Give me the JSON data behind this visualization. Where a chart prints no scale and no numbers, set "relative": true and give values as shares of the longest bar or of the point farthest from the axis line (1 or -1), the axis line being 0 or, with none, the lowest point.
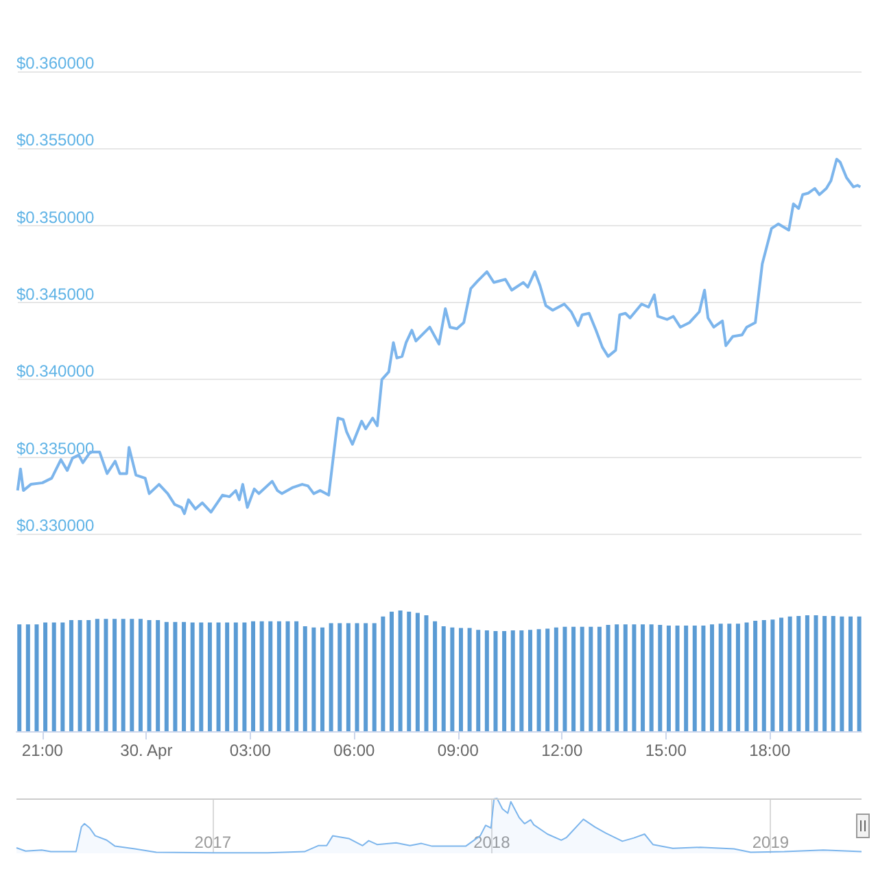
{
  "chart_data": [
    {
      "type": "line",
      "color": "#7cb5ec",
      "marker": "none",
      "grid": "y",
      "tick_labels": "y",
      "xlim": [
        "2019-04-29T20:15",
        "2019-04-30T20:39"
      ],
      "ylim": [
        0.33,
        0.36
      ],
      "yticks": [
        {
          "value": 0.33,
          "label": "$0.330000"
        },
        {
          "value": 0.335,
          "label": "$0.335000"
        },
        {
          "value": 0.34,
          "label": "$0.340000"
        },
        {
          "value": 0.345,
          "label": "$0.345000"
        },
        {
          "value": 0.35,
          "label": "$0.350000"
        },
        {
          "value": 0.355,
          "label": "$0.355000"
        },
        {
          "value": 0.36,
          "label": "$0.360000"
        }
      ],
      "x": [
        "2019-04-29T20:17",
        "2019-04-29T20:22",
        "2019-04-29T20:27",
        "2019-04-29T20:40",
        "2019-04-29T21:00",
        "2019-04-29T21:16",
        "2019-04-29T21:32",
        "2019-04-29T21:43",
        "2019-04-29T21:52",
        "2019-04-29T22:03",
        "2019-04-29T22:10",
        "2019-04-29T22:23",
        "2019-04-29T22:39",
        "2019-04-29T22:52",
        "2019-04-29T23:06",
        "2019-04-29T23:14",
        "2019-04-29T23:26",
        "2019-04-29T23:30",
        "2019-04-29T23:42",
        "2019-04-29T23:58",
        "2019-04-30T00:05",
        "2019-04-30T00:22",
        "2019-04-30T00:37",
        "2019-04-30T00:49",
        "2019-04-30T01:01",
        "2019-04-30T01:06",
        "2019-04-30T01:13",
        "2019-04-30T01:25",
        "2019-04-30T01:37",
        "2019-04-30T01:52",
        "2019-04-30T02:12",
        "2019-04-30T02:24",
        "2019-04-30T02:35",
        "2019-04-30T02:41",
        "2019-04-30T02:47",
        "2019-04-30T02:55",
        "2019-04-30T03:07",
        "2019-04-30T03:15",
        "2019-04-30T03:38",
        "2019-04-30T03:47",
        "2019-04-30T03:55",
        "2019-04-30T04:14",
        "2019-04-30T04:30",
        "2019-04-30T04:40",
        "2019-04-30T04:50",
        "2019-04-30T05:01",
        "2019-04-30T05:16",
        "2019-04-30T05:32",
        "2019-04-30T05:41",
        "2019-04-30T05:47",
        "2019-04-30T05:57",
        "2019-04-30T06:13",
        "2019-04-30T06:20",
        "2019-04-30T06:32",
        "2019-04-30T06:40",
        "2019-04-30T06:48",
        "2019-04-30T07:00",
        "2019-04-30T07:08",
        "2019-04-30T07:14",
        "2019-04-30T07:23",
        "2019-04-30T07:30",
        "2019-04-30T07:40",
        "2019-04-30T07:47",
        "2019-04-30T08:11",
        "2019-04-30T08:27",
        "2019-04-30T08:38",
        "2019-04-30T08:46",
        "2019-04-30T08:58",
        "2019-04-30T09:10",
        "2019-04-30T09:22",
        "2019-04-30T09:34",
        "2019-04-30T09:50",
        "2019-04-30T10:02",
        "2019-04-30T10:22",
        "2019-04-30T10:33",
        "2019-04-30T10:53",
        "2019-04-30T11:01",
        "2019-04-30T11:13",
        "2019-04-30T11:22",
        "2019-04-30T11:32",
        "2019-04-30T11:44",
        "2019-04-30T12:04",
        "2019-04-30T12:16",
        "2019-04-30T12:28",
        "2019-04-30T12:35",
        "2019-04-30T12:47",
        "2019-04-30T12:59",
        "2019-04-30T13:10",
        "2019-04-30T13:20",
        "2019-04-30T13:33",
        "2019-04-30T13:40",
        "2019-04-30T13:50",
        "2019-04-30T13:58",
        "2019-04-30T14:18",
        "2019-04-30T14:30",
        "2019-04-30T14:40",
        "2019-04-30T14:46",
        "2019-04-30T15:02",
        "2019-04-30T15:13",
        "2019-04-30T15:25",
        "2019-04-30T15:41",
        "2019-04-30T15:58",
        "2019-04-30T16:07",
        "2019-04-30T16:13",
        "2019-04-30T16:23",
        "2019-04-30T16:38",
        "2019-04-30T16:44",
        "2019-04-30T16:56",
        "2019-04-30T17:12",
        "2019-04-30T17:20",
        "2019-04-30T17:35",
        "2019-04-30T17:47",
        "2019-04-30T18:03",
        "2019-04-30T18:15",
        "2019-04-30T18:33",
        "2019-04-30T18:41",
        "2019-04-30T18:50",
        "2019-04-30T18:57",
        "2019-04-30T19:07",
        "2019-04-30T19:18",
        "2019-04-30T19:26",
        "2019-04-30T19:38",
        "2019-04-30T19:46",
        "2019-04-30T19:56",
        "2019-04-30T20:02",
        "2019-04-30T20:13",
        "2019-04-30T20:25",
        "2019-04-30T20:32",
        "2019-04-30T20:37"
      ],
      "values": [
        0.3328,
        0.3342,
        0.3328,
        0.3332,
        0.3333,
        0.3336,
        0.3348,
        0.3341,
        0.3349,
        0.3351,
        0.3346,
        0.3353,
        0.3353,
        0.3339,
        0.3347,
        0.3339,
        0.3339,
        0.3356,
        0.3338,
        0.3336,
        0.3326,
        0.3332,
        0.3326,
        0.3319,
        0.3317,
        0.3313,
        0.3322,
        0.3316,
        0.332,
        0.3314,
        0.3325,
        0.3324,
        0.3328,
        0.3322,
        0.3332,
        0.3317,
        0.3329,
        0.3326,
        0.3334,
        0.3328,
        0.3326,
        0.333,
        0.3332,
        0.3331,
        0.3326,
        0.3328,
        0.3325,
        0.3375,
        0.3374,
        0.3366,
        0.3358,
        0.3373,
        0.3368,
        0.3375,
        0.337,
        0.34,
        0.3405,
        0.3424,
        0.3414,
        0.3415,
        0.3424,
        0.3432,
        0.3425,
        0.3434,
        0.3423,
        0.3446,
        0.3434,
        0.3433,
        0.3437,
        0.3459,
        0.3464,
        0.347,
        0.3463,
        0.3465,
        0.3458,
        0.3463,
        0.346,
        0.347,
        0.3461,
        0.3448,
        0.3445,
        0.3449,
        0.3444,
        0.3435,
        0.3442,
        0.3443,
        0.3432,
        0.3421,
        0.3415,
        0.3419,
        0.3442,
        0.3443,
        0.344,
        0.3449,
        0.3447,
        0.3455,
        0.3441,
        0.3439,
        0.3441,
        0.3434,
        0.3437,
        0.3444,
        0.3458,
        0.344,
        0.3434,
        0.3438,
        0.3422,
        0.3428,
        0.3429,
        0.3434,
        0.3437,
        0.3475,
        0.3498,
        0.3501,
        0.3497,
        0.3514,
        0.3511,
        0.352,
        0.3521,
        0.3524,
        0.352,
        0.3524,
        0.3529,
        0.3543,
        0.3541,
        0.3531,
        0.3525,
        0.3526,
        0.3525
      ]
    },
    {
      "type": "bar",
      "color": "#5a9bd4",
      "relative": true,
      "tick_labels": "x",
      "xlim": [
        "2019-04-29T20:15",
        "2019-04-30T20:39"
      ],
      "xticks": [
        {
          "value": "2019-04-29T21:00",
          "label": "21:00"
        },
        {
          "value": "2019-04-30T00:00",
          "label": "30. Apr"
        },
        {
          "value": "2019-04-30T03:00",
          "label": "03:00"
        },
        {
          "value": "2019-04-30T06:00",
          "label": "06:00"
        },
        {
          "value": "2019-04-30T09:00",
          "label": "09:00"
        },
        {
          "value": "2019-04-30T12:00",
          "label": "12:00"
        },
        {
          "value": "2019-04-30T15:00",
          "label": "15:00"
        },
        {
          "value": "2019-04-30T18:00",
          "label": "18:00"
        }
      ],
      "x": [
        "2019-04-29T20:20",
        "2019-04-29T20:35",
        "2019-04-29T20:50",
        "2019-04-29T21:05",
        "2019-04-29T21:20",
        "2019-04-29T21:35",
        "2019-04-29T21:50",
        "2019-04-29T22:05",
        "2019-04-29T22:20",
        "2019-04-29T22:35",
        "2019-04-29T22:50",
        "2019-04-29T23:05",
        "2019-04-29T23:20",
        "2019-04-29T23:35",
        "2019-04-29T23:50",
        "2019-04-30T00:05",
        "2019-04-30T00:20",
        "2019-04-30T00:35",
        "2019-04-30T00:50",
        "2019-04-30T01:05",
        "2019-04-30T01:20",
        "2019-04-30T01:35",
        "2019-04-30T01:50",
        "2019-04-30T02:05",
        "2019-04-30T02:20",
        "2019-04-30T02:35",
        "2019-04-30T02:50",
        "2019-04-30T03:05",
        "2019-04-30T03:20",
        "2019-04-30T03:35",
        "2019-04-30T03:50",
        "2019-04-30T04:05",
        "2019-04-30T04:20",
        "2019-04-30T04:35",
        "2019-04-30T04:50",
        "2019-04-30T05:05",
        "2019-04-30T05:20",
        "2019-04-30T05:35",
        "2019-04-30T05:50",
        "2019-04-30T06:05",
        "2019-04-30T06:20",
        "2019-04-30T06:35",
        "2019-04-30T06:50",
        "2019-04-30T07:05",
        "2019-04-30T07:20",
        "2019-04-30T07:35",
        "2019-04-30T07:50",
        "2019-04-30T08:05",
        "2019-04-30T08:20",
        "2019-04-30T08:35",
        "2019-04-30T08:50",
        "2019-04-30T09:05",
        "2019-04-30T09:20",
        "2019-04-30T09:35",
        "2019-04-30T09:50",
        "2019-04-30T10:05",
        "2019-04-30T10:20",
        "2019-04-30T10:35",
        "2019-04-30T10:50",
        "2019-04-30T11:05",
        "2019-04-30T11:20",
        "2019-04-30T11:35",
        "2019-04-30T11:50",
        "2019-04-30T12:05",
        "2019-04-30T12:20",
        "2019-04-30T12:35",
        "2019-04-30T12:50",
        "2019-04-30T13:05",
        "2019-04-30T13:20",
        "2019-04-30T13:35",
        "2019-04-30T13:50",
        "2019-04-30T14:05",
        "2019-04-30T14:20",
        "2019-04-30T14:35",
        "2019-04-30T14:50",
        "2019-04-30T15:05",
        "2019-04-30T15:20",
        "2019-04-30T15:35",
        "2019-04-30T15:50",
        "2019-04-30T16:05",
        "2019-04-30T16:20",
        "2019-04-30T16:35",
        "2019-04-30T16:50",
        "2019-04-30T17:05",
        "2019-04-30T17:20",
        "2019-04-30T17:35",
        "2019-04-30T17:50",
        "2019-04-30T18:05",
        "2019-04-30T18:20",
        "2019-04-30T18:35",
        "2019-04-30T18:50",
        "2019-04-30T19:05",
        "2019-04-30T19:20",
        "2019-04-30T19:35",
        "2019-04-30T19:50",
        "2019-04-30T20:05",
        "2019-04-30T20:20",
        "2019-04-30T20:35"
      ],
      "values": [
        0.885,
        0.885,
        0.885,
        0.9,
        0.9,
        0.9,
        0.92,
        0.92,
        0.92,
        0.93,
        0.93,
        0.93,
        0.93,
        0.93,
        0.93,
        0.92,
        0.92,
        0.905,
        0.905,
        0.905,
        0.9,
        0.9,
        0.9,
        0.9,
        0.9,
        0.9,
        0.9,
        0.91,
        0.91,
        0.91,
        0.91,
        0.91,
        0.91,
        0.87,
        0.86,
        0.86,
        0.895,
        0.895,
        0.895,
        0.895,
        0.895,
        0.895,
        0.95,
        0.99,
        1,
        0.99,
        0.98,
        0.96,
        0.91,
        0.87,
        0.86,
        0.855,
        0.855,
        0.84,
        0.835,
        0.83,
        0.83,
        0.835,
        0.835,
        0.84,
        0.845,
        0.85,
        0.86,
        0.865,
        0.865,
        0.865,
        0.865,
        0.865,
        0.88,
        0.885,
        0.885,
        0.885,
        0.885,
        0.885,
        0.88,
        0.875,
        0.875,
        0.875,
        0.875,
        0.875,
        0.885,
        0.89,
        0.89,
        0.89,
        0.9,
        0.915,
        0.92,
        0.925,
        0.94,
        0.95,
        0.955,
        0.96,
        0.96,
        0.955,
        0.955,
        0.95,
        0.95,
        0.95
      ]
    },
    {
      "type": "area",
      "color": "#7cb5ec",
      "relative": true,
      "grid": "x",
      "tick_labels": "x",
      "xlim": [
        "2016-04-19",
        "2019-04-30"
      ],
      "xticks": [
        {
          "value": "2017-01-01",
          "label": "2017"
        },
        {
          "value": "2018-01-01",
          "label": "2018"
        },
        {
          "value": "2019-01-01",
          "label": "2019"
        }
      ],
      "x": [
        "2016-04-19",
        "2016-05-01",
        "2016-05-22",
        "2016-06-03",
        "2016-07-06",
        "2016-07-13",
        "2016-07-17",
        "2016-07-24",
        "2016-07-31",
        "2016-08-15",
        "2016-08-26",
        "2016-09-21",
        "2016-10-19",
        "2017-01-01",
        "2017-03-14",
        "2017-05-01",
        "2017-05-19",
        "2017-05-30",
        "2017-06-07",
        "2017-06-28",
        "2017-07-16",
        "2017-07-24",
        "2017-08-04",
        "2017-08-29",
        "2017-09-16",
        "2017-10-01",
        "2017-10-15",
        "2017-11-28",
        "2017-12-17",
        "2017-12-24",
        "2017-12-31",
        "2018-01-04",
        "2018-01-08",
        "2018-01-15",
        "2018-01-22",
        "2018-01-26",
        "2018-02-06",
        "2018-02-13",
        "2018-02-21",
        "2018-02-25",
        "2018-03-15",
        "2018-04-02",
        "2018-04-09",
        "2018-05-01",
        "2018-05-16",
        "2018-05-30",
        "2018-06-21",
        "2018-07-06",
        "2018-07-20",
        "2018-07-31",
        "2018-08-26",
        "2018-10-01",
        "2018-11-14",
        "2018-12-06",
        "2019-01-19",
        "2019-03-11",
        "2019-04-30"
      ],
      "values": [
        0.1,
        0.04,
        0.06,
        0.03,
        0.03,
        0.48,
        0.54,
        0.46,
        0.32,
        0.24,
        0.13,
        0.08,
        0.02,
        0.01,
        0.01,
        0.03,
        0.14,
        0.14,
        0.32,
        0.27,
        0.14,
        0.23,
        0.16,
        0.19,
        0.14,
        0.18,
        0.13,
        0.13,
        0.32,
        0.51,
        0.46,
        0.99,
        1,
        0.81,
        0.73,
        0.94,
        0.65,
        0.54,
        0.61,
        0.52,
        0.35,
        0.24,
        0.29,
        0.62,
        0.48,
        0.37,
        0.22,
        0.28,
        0.35,
        0.16,
        0.09,
        0.11,
        0.08,
        0.02,
        0.03,
        0.06,
        0.03
      ]
    }
  ]
}
